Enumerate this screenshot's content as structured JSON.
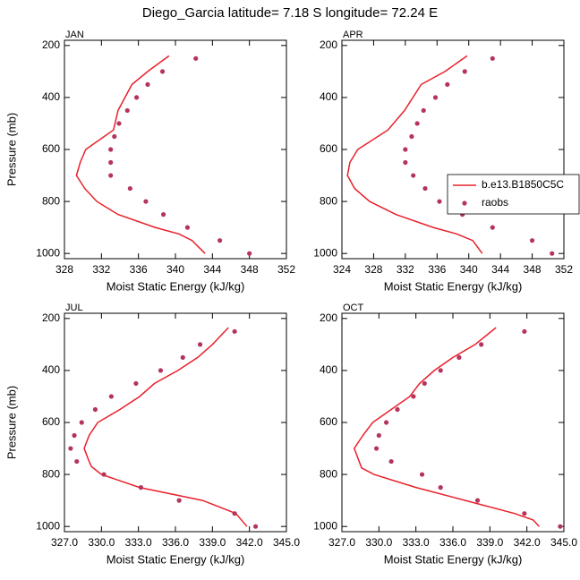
{
  "title": "Diego_Garcia  latitude= 7.18 S longitude= 72.24 E",
  "chart_data": [
    {
      "type": "profile",
      "title": "JAN",
      "xlabel": "Moist Static Energy (kJ/kg)",
      "ylabel": "Pressure (mb)",
      "xlim": [
        328,
        352
      ],
      "ylim": [
        180,
        1020
      ],
      "yreverse": true,
      "xticks": [
        328,
        332,
        336,
        340,
        344,
        348,
        352
      ],
      "yticks": [
        200,
        400,
        600,
        800,
        1000
      ],
      "series": [
        {
          "style": "line",
          "color": "#e8202a",
          "x": [
            343.2,
            341.8,
            340.4,
            337.8,
            333.8,
            331.5,
            330.2,
            329.3,
            329.7,
            330.3,
            333.3,
            333.8,
            335.3,
            337.0,
            339.3
          ],
          "values": [
            1000,
            950,
            925,
            900,
            850,
            800,
            750,
            700,
            650,
            600,
            525,
            450,
            350,
            300,
            240
          ]
        },
        {
          "style": "dot",
          "color": "#b5345c",
          "x": [
            348.0,
            344.8,
            341.3,
            338.7,
            336.8,
            335.1,
            333.0,
            333.0,
            333.0,
            333.4,
            333.9,
            334.8,
            335.8,
            337.0,
            338.6,
            342.2
          ],
          "values": [
            1000,
            950,
            900,
            850,
            800,
            750,
            700,
            650,
            600,
            550,
            500,
            450,
            400,
            350,
            300,
            250
          ]
        }
      ]
    },
    {
      "type": "profile",
      "title": "APR",
      "xlabel": "Moist Static Energy (kJ/kg)",
      "xlim": [
        324,
        352
      ],
      "ylim": [
        180,
        1020
      ],
      "yreverse": true,
      "legend": "right",
      "xticks": [
        324,
        328,
        332,
        336,
        340,
        344,
        348,
        352
      ],
      "yticks": [
        200,
        400,
        600,
        800,
        1000
      ],
      "series": [
        {
          "name": "b.e13.B1850C5C",
          "style": "line",
          "color": "#e8202a",
          "x": [
            341.7,
            340.5,
            338.5,
            335.5,
            330.8,
            327.5,
            325.6,
            324.7,
            325.0,
            326.0,
            329.8,
            331.9,
            334.0,
            337.0,
            339.8
          ],
          "values": [
            1000,
            950,
            925,
            900,
            850,
            800,
            750,
            700,
            650,
            600,
            525,
            450,
            350,
            300,
            240
          ]
        },
        {
          "name": "raobs",
          "style": "dot",
          "color": "#b5345c",
          "x": [
            350.5,
            348.0,
            343.0,
            339.2,
            336.3,
            334.5,
            333.0,
            332.0,
            332.0,
            332.8,
            333.5,
            334.3,
            335.8,
            337.3,
            339.5,
            343.0
          ],
          "values": [
            1000,
            950,
            900,
            850,
            800,
            750,
            700,
            650,
            600,
            550,
            500,
            450,
            400,
            350,
            300,
            250
          ]
        }
      ]
    },
    {
      "type": "profile",
      "title": "JUL",
      "xlabel": "Moist Static Energy (kJ/kg)",
      "ylabel": "Pressure (mb)",
      "xlim": [
        327,
        345
      ],
      "ylim": [
        180,
        1020
      ],
      "yreverse": true,
      "xticks": [
        {
          "value": 327,
          "label": "327.0"
        },
        {
          "value": 330,
          "label": "330.0"
        },
        {
          "value": 333,
          "label": "333.0"
        },
        {
          "value": 336,
          "label": "336.0"
        },
        {
          "value": 339,
          "label": "339.0"
        },
        {
          "value": 342,
          "label": "342.0"
        },
        {
          "value": 345,
          "label": "345.0"
        }
      ],
      "yticks": [
        200,
        400,
        600,
        800,
        1000
      ],
      "series": [
        {
          "style": "line",
          "color": "#e8202a",
          "x": [
            341.8,
            340.9,
            338.2,
            333.1,
            330.0,
            329.2,
            329.0,
            328.6,
            329.0,
            329.7,
            331.5,
            333.1,
            334.3,
            336.2,
            337.8,
            339.0,
            340.3
          ],
          "values": [
            1000,
            950,
            900,
            850,
            800,
            770,
            750,
            700,
            650,
            600,
            550,
            500,
            450,
            400,
            350,
            300,
            235
          ]
        },
        {
          "style": "dot",
          "color": "#b5345c",
          "x": [
            342.5,
            340.8,
            336.3,
            333.2,
            330.2,
            328.0,
            327.5,
            327.8,
            328.4,
            329.5,
            330.8,
            332.8,
            334.8,
            336.6,
            338.0,
            340.8
          ],
          "values": [
            1000,
            950,
            900,
            850,
            800,
            750,
            700,
            650,
            600,
            550,
            500,
            450,
            400,
            350,
            300,
            250
          ]
        }
      ]
    },
    {
      "type": "profile",
      "title": "OCT",
      "xlabel": "Moist Static Energy (kJ/kg)",
      "xlim": [
        327,
        345
      ],
      "ylim": [
        180,
        1020
      ],
      "yreverse": true,
      "xticks": [
        {
          "value": 327,
          "label": "327.0"
        },
        {
          "value": 330,
          "label": "330.0"
        },
        {
          "value": 333,
          "label": "333.0"
        },
        {
          "value": 336,
          "label": "336.0"
        },
        {
          "value": 339,
          "label": "339.0"
        },
        {
          "value": 342,
          "label": "342.0"
        },
        {
          "value": 345,
          "label": "345.0"
        }
      ],
      "yticks": [
        200,
        400,
        600,
        800,
        1000
      ],
      "series": [
        {
          "style": "line",
          "color": "#e8202a",
          "x": [
            343.0,
            342.5,
            341.0,
            337.0,
            333.0,
            329.6,
            328.6,
            328.0,
            328.7,
            329.5,
            331.0,
            332.5,
            333.3,
            334.5,
            336.0,
            337.8,
            339.5
          ],
          "values": [
            1000,
            975,
            950,
            900,
            850,
            800,
            775,
            700,
            650,
            600,
            550,
            500,
            450,
            400,
            350,
            300,
            235
          ]
        },
        {
          "style": "dot",
          "color": "#b5345c",
          "x": [
            344.7,
            341.8,
            338.0,
            335.0,
            333.5,
            331.0,
            329.8,
            330.0,
            330.6,
            331.5,
            332.8,
            333.7,
            335.0,
            336.5,
            338.3,
            341.8
          ],
          "values": [
            1000,
            950,
            900,
            850,
            800,
            750,
            700,
            650,
            600,
            550,
            500,
            450,
            400,
            350,
            300,
            250
          ]
        }
      ]
    }
  ]
}
